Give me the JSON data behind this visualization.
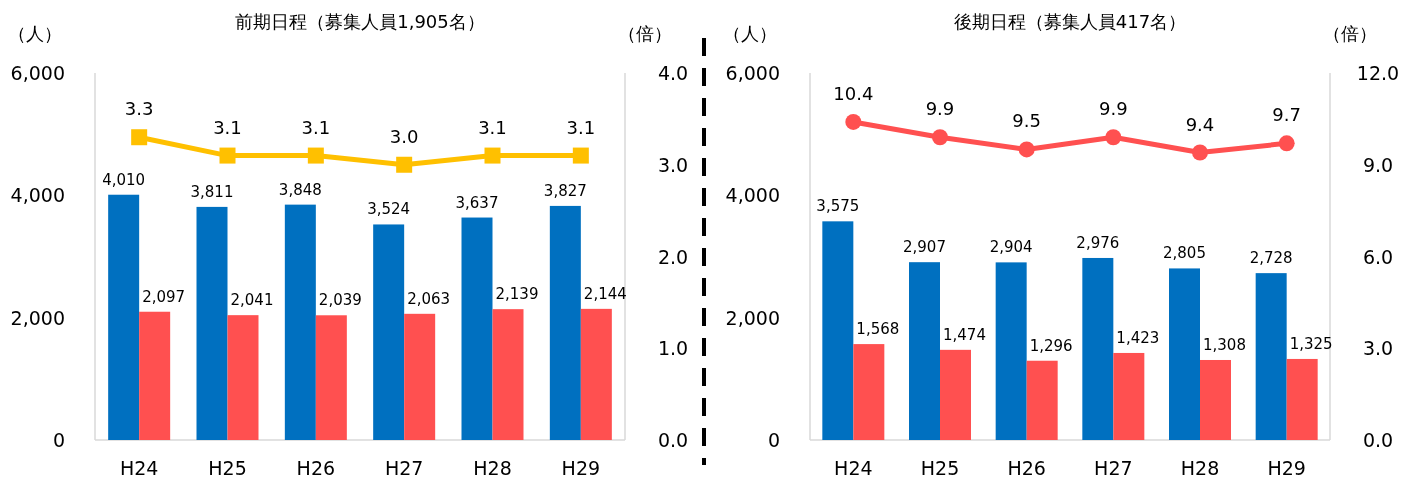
{
  "chart_data": [
    {
      "type": "bar",
      "title": "前期日程（募集人員1,905名）",
      "ylabel": "（人）",
      "y2label": "（倍）",
      "categories": [
        "H24",
        "H25",
        "H26",
        "H27",
        "H28",
        "H29"
      ],
      "ylim": [
        0,
        6000
      ],
      "yticks": [
        0,
        {
          "value": 2000,
          "label": "2,000"
        },
        {
          "value": 4000,
          "label": "4,000"
        },
        {
          "value": 6000,
          "label": "6,000"
        }
      ],
      "y2lim": [
        0,
        4
      ],
      "y2ticks": [
        {
          "value": 0,
          "label": "0.0"
        },
        {
          "value": 1,
          "label": "1.0"
        },
        {
          "value": 2,
          "label": "2.0"
        },
        {
          "value": 3,
          "label": "3.0"
        },
        {
          "value": 4,
          "label": "4.0"
        }
      ],
      "series": [
        {
          "color": "#0070c0",
          "values": [
            4010,
            3811,
            3848,
            3524,
            3637,
            3827
          ],
          "value_labels": [
            "4,010",
            "3,811",
            "3,848",
            "3,524",
            "3,637",
            "3,827"
          ]
        },
        {
          "color": "#ff5050",
          "values": [
            2097,
            2041,
            2039,
            2063,
            2139,
            2144
          ],
          "value_labels": [
            "2,097",
            "2,041",
            "2,039",
            "2,063",
            "2,139",
            "2,144"
          ]
        },
        {
          "type": "line",
          "axis": "y2",
          "marker": "square",
          "color": "#ffc000",
          "values": [
            3.3,
            3.1,
            3.1,
            3.0,
            3.1,
            3.1
          ],
          "value_labels": [
            "3.3",
            "3.1",
            "3.1",
            "3.0",
            "3.1",
            "3.1"
          ]
        }
      ]
    },
    {
      "type": "bar",
      "title": "後期日程（募集人員417名）",
      "ylabel": "（人）",
      "y2label": "（倍）",
      "categories": [
        "H24",
        "H25",
        "H26",
        "H27",
        "H28",
        "H29"
      ],
      "ylim": [
        0,
        6000
      ],
      "yticks": [
        0,
        {
          "value": 2000,
          "label": "2,000"
        },
        {
          "value": 4000,
          "label": "4,000"
        },
        {
          "value": 6000,
          "label": "6,000"
        }
      ],
      "y2lim": [
        0,
        12
      ],
      "y2ticks": [
        {
          "value": 0,
          "label": "0.0"
        },
        {
          "value": 3,
          "label": "3.0"
        },
        {
          "value": 6,
          "label": "6.0"
        },
        {
          "value": 9,
          "label": "9.0"
        },
        {
          "value": 12,
          "label": "12.0"
        }
      ],
      "series": [
        {
          "color": "#0070c0",
          "values": [
            3575,
            2907,
            2904,
            2976,
            2805,
            2728
          ],
          "value_labels": [
            "3,575",
            "2,907",
            "2,904",
            "2,976",
            "2,805",
            "2,728"
          ]
        },
        {
          "color": "#ff5050",
          "values": [
            1568,
            1474,
            1296,
            1423,
            1308,
            1325
          ],
          "value_labels": [
            "1,568",
            "1,474",
            "1,296",
            "1,423",
            "1,308",
            "1,325"
          ]
        },
        {
          "type": "line",
          "axis": "y2",
          "marker": "circle",
          "color": "#ff5050",
          "values": [
            10.4,
            9.9,
            9.5,
            9.9,
            9.4,
            9.7
          ],
          "value_labels": [
            "10.4",
            "9.9",
            "9.5",
            "9.9",
            "9.4",
            "9.7"
          ]
        }
      ]
    }
  ]
}
